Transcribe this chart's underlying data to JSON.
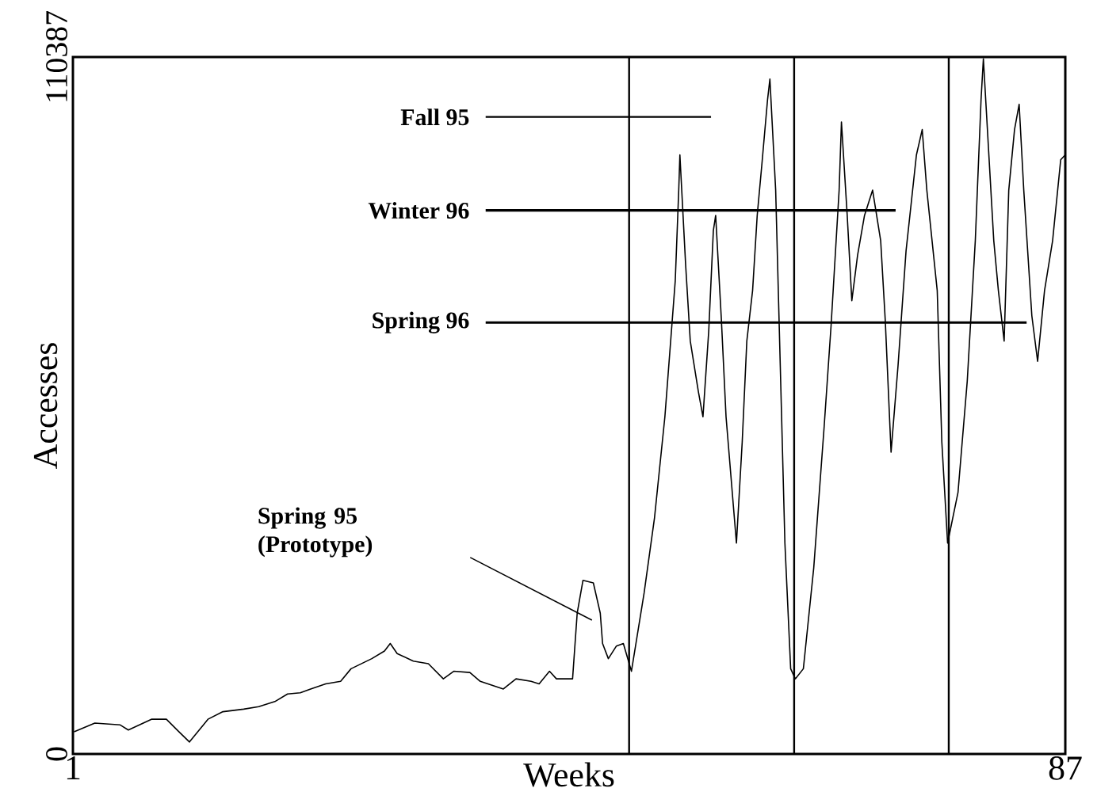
{
  "chart_data": {
    "type": "line",
    "xlabel": "Weeks",
    "ylabel": "Accesses",
    "xlim": [
      1,
      87
    ],
    "xticks": [
      1,
      87
    ],
    "ylim": [
      0,
      110387
    ],
    "yticks": [
      0,
      110387
    ],
    "series": [
      {
        "color": "#000000",
        "x": [
          1.1,
          2.9,
          5.1,
          5.8,
          7.8,
          9.1,
          10.2,
          11.1,
          12.7,
          14.0,
          15.8,
          17.1,
          18.5,
          19.6,
          20.7,
          21.6,
          22.9,
          24.2,
          25.1,
          26.9,
          28.0,
          28.5,
          29.1,
          30.5,
          31.8,
          33.1,
          34.0,
          35.4,
          36.3,
          38.3,
          39.4,
          40.7,
          41.4,
          42.3,
          42.9,
          44.3,
          44.7,
          45.2,
          46.1,
          46.7,
          46.9,
          47.4,
          48.1,
          48.7,
          49.4,
          50.5,
          51.4,
          52.3,
          52.7,
          53.2,
          53.5,
          53.6,
          54.1,
          54.5,
          55.2,
          55.6,
          56.1,
          56.5,
          56.7,
          57.2,
          57.6,
          58.5,
          59.0,
          59.4,
          59.9,
          60.3,
          60.7,
          61.2,
          61.4,
          61.9,
          62.3,
          62.7,
          63.2,
          63.6,
          64.3,
          65.2,
          66.1,
          66.7,
          67.4,
          67.6,
          68.1,
          68.5,
          69.0,
          69.6,
          70.3,
          71.0,
          71.4,
          71.9,
          72.5,
          73.2,
          74.1,
          74.6,
          75.0,
          75.9,
          76.3,
          76.8,
          77.7,
          78.5,
          79.2,
          79.7,
          79.9,
          80.8,
          81.2,
          81.7,
          82.1,
          82.6,
          83.0,
          83.4,
          84.1,
          84.6,
          85.2,
          85.9,
          86.6,
          87.0
        ],
        "values": [
          3500,
          4900,
          4600,
          3800,
          5500,
          5500,
          3500,
          1900,
          5500,
          6700,
          7100,
          7500,
          8300,
          9500,
          9700,
          10300,
          11100,
          11500,
          13500,
          15100,
          16300,
          17500,
          15900,
          14700,
          14300,
          11900,
          13100,
          12900,
          11500,
          10300,
          11900,
          11500,
          11100,
          13100,
          11900,
          11900,
          22300,
          27500,
          27100,
          22300,
          17500,
          15100,
          17100,
          17500,
          13100,
          25500,
          37400,
          53400,
          63000,
          75000,
          89300,
          94900,
          77400,
          65400,
          57400,
          53400,
          67000,
          82900,
          85300,
          68600,
          53400,
          33400,
          49400,
          65400,
          73400,
          85300,
          93300,
          103700,
          106900,
          89300,
          61400,
          33400,
          13500,
          11900,
          13500,
          29500,
          51800,
          67800,
          89300,
          100100,
          85300,
          71800,
          79000,
          85300,
          89300,
          81300,
          68600,
          47800,
          61400,
          79700,
          94900,
          98900,
          89300,
          73400,
          49400,
          33400,
          41400,
          59000,
          81300,
          103700,
          110100,
          81300,
          73400,
          65400,
          89300,
          98900,
          102900,
          89300,
          69400,
          62200,
          73400,
          81300,
          94100,
          94900
        ]
      }
    ],
    "ref_lines": [
      {
        "axis": "x",
        "value": 49.2,
        "color": "#000000"
      },
      {
        "axis": "x",
        "value": 63.5,
        "color": "#000000"
      },
      {
        "axis": "x",
        "value": 76.9,
        "color": "#000000"
      }
    ],
    "annotations": [
      "Fall 95",
      "Winter 96",
      "Spring 96",
      "Spring 95 (Prototype)"
    ]
  }
}
